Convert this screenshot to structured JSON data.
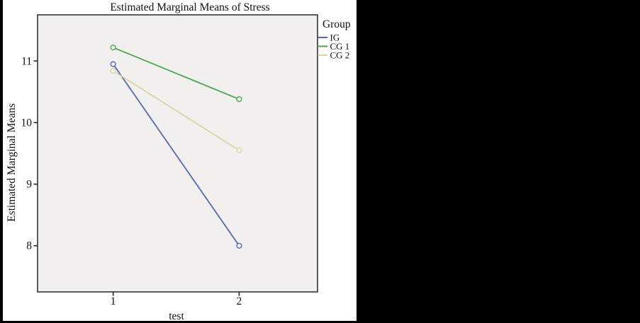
{
  "figure": {
    "title": "Estimated Marginal Means of Stress",
    "x_axis_label": "test",
    "y_axis_label": "Estimated Marginal Means",
    "legend_title": "Group"
  },
  "colors": {
    "panel_background": "#f1f0ee",
    "panel_border": "#4a4a48",
    "matte_black": "#000000",
    "text": "#111111"
  },
  "chart_data": {
    "type": "line",
    "title": "Estimated Marginal Means of Stress",
    "xlabel": "test",
    "ylabel": "Estimated Marginal Means",
    "categories": [
      "1",
      "2"
    ],
    "series": [
      {
        "name": "IG",
        "color": "#5768ae",
        "values": [
          10.95,
          8.0
        ]
      },
      {
        "name": "CG 1",
        "color": "#4ca555",
        "values": [
          11.22,
          10.38
        ]
      },
      {
        "name": "CG 2",
        "color": "#d9d3a6",
        "values": [
          10.84,
          9.55
        ]
      }
    ],
    "y_ticks": [
      8,
      9,
      10,
      11
    ],
    "ylim": [
      7.25,
      11.75
    ],
    "legend_title": "Group",
    "legend_position": "right",
    "grid": false,
    "marker": "open-circle",
    "plot_background": "#f1f0ee"
  }
}
